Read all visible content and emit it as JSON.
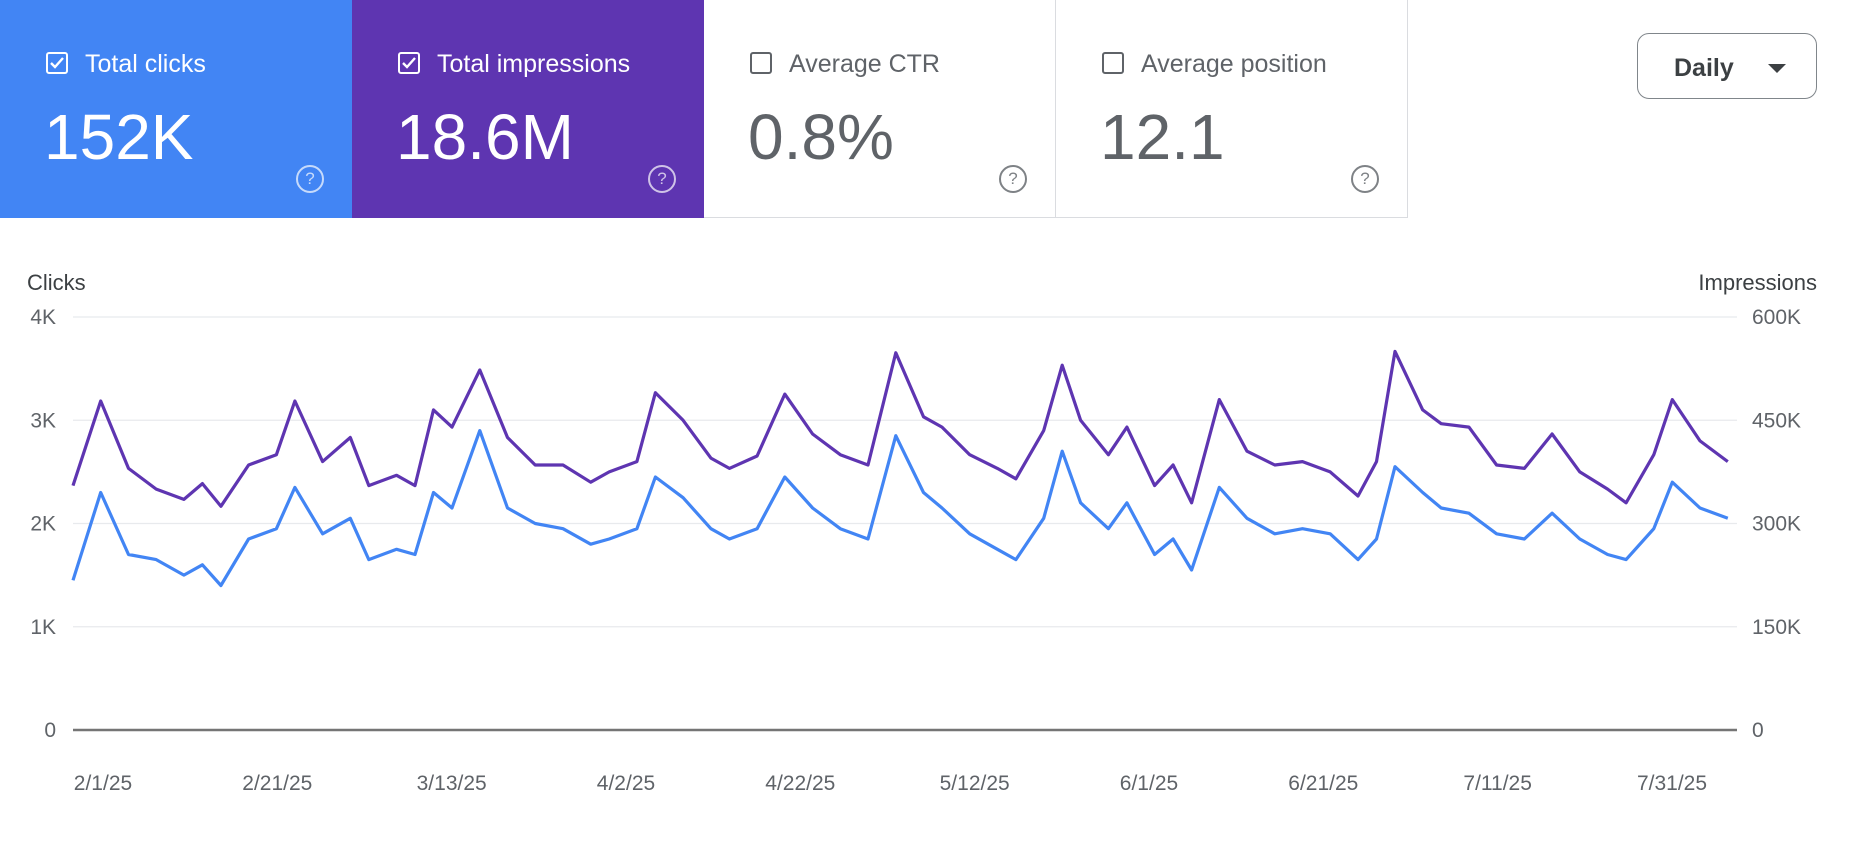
{
  "cards": [
    {
      "label": "Total clicks",
      "value": "152K",
      "checked": true
    },
    {
      "label": "Total impressions",
      "value": "18.6M",
      "checked": true
    },
    {
      "label": "Average CTR",
      "value": "0.8%",
      "checked": false
    },
    {
      "label": "Average position",
      "value": "12.1",
      "checked": false
    }
  ],
  "help_glyph": "?",
  "granularity": {
    "label": "Daily"
  },
  "colors": {
    "clicks": "#4285f4",
    "impressions": "#5e35b1",
    "grid": "#e8eaed",
    "baseline": "#757575"
  },
  "chart_data": {
    "type": "line",
    "x_tick_labels": [
      "2/1/25",
      "2/21/25",
      "3/13/25",
      "4/2/25",
      "4/22/25",
      "5/12/25",
      "6/1/25",
      "6/21/25",
      "7/11/25",
      "7/31/25"
    ],
    "xlim": [
      "2025-02-01",
      "2025-07-31"
    ],
    "y_left": {
      "label": "Clicks",
      "ticks": [
        "0",
        "1K",
        "2K",
        "3K",
        "4K"
      ],
      "ylim": [
        0,
        4000
      ]
    },
    "y_right": {
      "label": "Impressions",
      "ticks": [
        "0",
        "150K",
        "300K",
        "450K",
        "600K"
      ],
      "ylim": [
        0,
        600000
      ]
    },
    "grid": true,
    "series": [
      {
        "name": "Impressions",
        "axis": "right",
        "points": [
          [
            "2025-02-01",
            355000
          ],
          [
            "2025-02-04",
            478000
          ],
          [
            "2025-02-07",
            380000
          ],
          [
            "2025-02-10",
            350000
          ],
          [
            "2025-02-13",
            335000
          ],
          [
            "2025-02-15",
            358000
          ],
          [
            "2025-02-17",
            325000
          ],
          [
            "2025-02-20",
            385000
          ],
          [
            "2025-02-23",
            400000
          ],
          [
            "2025-02-25",
            478000
          ],
          [
            "2025-02-28",
            390000
          ],
          [
            "2025-03-03",
            425000
          ],
          [
            "2025-03-05",
            355000
          ],
          [
            "2025-03-08",
            370000
          ],
          [
            "2025-03-10",
            355000
          ],
          [
            "2025-03-12",
            465000
          ],
          [
            "2025-03-14",
            440000
          ],
          [
            "2025-03-17",
            523000
          ],
          [
            "2025-03-20",
            425000
          ],
          [
            "2025-03-23",
            385000
          ],
          [
            "2025-03-26",
            385000
          ],
          [
            "2025-03-29",
            360000
          ],
          [
            "2025-03-31",
            375000
          ],
          [
            "2025-04-03",
            390000
          ],
          [
            "2025-04-05",
            490000
          ],
          [
            "2025-04-08",
            450000
          ],
          [
            "2025-04-11",
            395000
          ],
          [
            "2025-04-13",
            380000
          ],
          [
            "2025-04-16",
            398000
          ],
          [
            "2025-04-19",
            488000
          ],
          [
            "2025-04-22",
            430000
          ],
          [
            "2025-04-25",
            400000
          ],
          [
            "2025-04-28",
            385000
          ],
          [
            "2025-05-01",
            548000
          ],
          [
            "2025-05-04",
            455000
          ],
          [
            "2025-05-06",
            440000
          ],
          [
            "2025-05-09",
            400000
          ],
          [
            "2025-05-12",
            380000
          ],
          [
            "2025-05-14",
            365000
          ],
          [
            "2025-05-17",
            435000
          ],
          [
            "2025-05-19",
            530000
          ],
          [
            "2025-05-21",
            450000
          ],
          [
            "2025-05-24",
            400000
          ],
          [
            "2025-05-26",
            440000
          ],
          [
            "2025-05-29",
            355000
          ],
          [
            "2025-05-31",
            385000
          ],
          [
            "2025-06-02",
            330000
          ],
          [
            "2025-06-05",
            480000
          ],
          [
            "2025-06-08",
            405000
          ],
          [
            "2025-06-11",
            385000
          ],
          [
            "2025-06-14",
            390000
          ],
          [
            "2025-06-17",
            375000
          ],
          [
            "2025-06-20",
            340000
          ],
          [
            "2025-06-22",
            390000
          ],
          [
            "2025-06-24",
            550000
          ],
          [
            "2025-06-27",
            465000
          ],
          [
            "2025-06-29",
            445000
          ],
          [
            "2025-07-02",
            440000
          ],
          [
            "2025-07-05",
            385000
          ],
          [
            "2025-07-08",
            380000
          ],
          [
            "2025-07-11",
            430000
          ],
          [
            "2025-07-14",
            375000
          ],
          [
            "2025-07-17",
            350000
          ],
          [
            "2025-07-19",
            330000
          ],
          [
            "2025-07-22",
            400000
          ],
          [
            "2025-07-24",
            480000
          ],
          [
            "2025-07-27",
            420000
          ],
          [
            "2025-07-30",
            390000
          ]
        ]
      },
      {
        "name": "Clicks",
        "axis": "left",
        "points": [
          [
            "2025-02-01",
            1450
          ],
          [
            "2025-02-04",
            2300
          ],
          [
            "2025-02-07",
            1700
          ],
          [
            "2025-02-10",
            1650
          ],
          [
            "2025-02-13",
            1500
          ],
          [
            "2025-02-15",
            1600
          ],
          [
            "2025-02-17",
            1400
          ],
          [
            "2025-02-20",
            1850
          ],
          [
            "2025-02-23",
            1950
          ],
          [
            "2025-02-25",
            2350
          ],
          [
            "2025-02-28",
            1900
          ],
          [
            "2025-03-03",
            2050
          ],
          [
            "2025-03-05",
            1650
          ],
          [
            "2025-03-08",
            1750
          ],
          [
            "2025-03-10",
            1700
          ],
          [
            "2025-03-12",
            2300
          ],
          [
            "2025-03-14",
            2150
          ],
          [
            "2025-03-17",
            2900
          ],
          [
            "2025-03-20",
            2150
          ],
          [
            "2025-03-23",
            2000
          ],
          [
            "2025-03-26",
            1950
          ],
          [
            "2025-03-29",
            1800
          ],
          [
            "2025-03-31",
            1850
          ],
          [
            "2025-04-03",
            1950
          ],
          [
            "2025-04-05",
            2450
          ],
          [
            "2025-04-08",
            2250
          ],
          [
            "2025-04-11",
            1950
          ],
          [
            "2025-04-13",
            1850
          ],
          [
            "2025-04-16",
            1950
          ],
          [
            "2025-04-19",
            2450
          ],
          [
            "2025-04-22",
            2150
          ],
          [
            "2025-04-25",
            1950
          ],
          [
            "2025-04-28",
            1850
          ],
          [
            "2025-05-01",
            2850
          ],
          [
            "2025-05-04",
            2300
          ],
          [
            "2025-05-06",
            2150
          ],
          [
            "2025-05-09",
            1900
          ],
          [
            "2025-05-12",
            1750
          ],
          [
            "2025-05-14",
            1650
          ],
          [
            "2025-05-17",
            2050
          ],
          [
            "2025-05-19",
            2700
          ],
          [
            "2025-05-21",
            2200
          ],
          [
            "2025-05-24",
            1950
          ],
          [
            "2025-05-26",
            2200
          ],
          [
            "2025-05-29",
            1700
          ],
          [
            "2025-05-31",
            1850
          ],
          [
            "2025-06-02",
            1550
          ],
          [
            "2025-06-05",
            2350
          ],
          [
            "2025-06-08",
            2050
          ],
          [
            "2025-06-11",
            1900
          ],
          [
            "2025-06-14",
            1950
          ],
          [
            "2025-06-17",
            1900
          ],
          [
            "2025-06-20",
            1650
          ],
          [
            "2025-06-22",
            1850
          ],
          [
            "2025-06-24",
            2550
          ],
          [
            "2025-06-27",
            2300
          ],
          [
            "2025-06-29",
            2150
          ],
          [
            "2025-07-02",
            2100
          ],
          [
            "2025-07-05",
            1900
          ],
          [
            "2025-07-08",
            1850
          ],
          [
            "2025-07-11",
            2100
          ],
          [
            "2025-07-14",
            1850
          ],
          [
            "2025-07-17",
            1700
          ],
          [
            "2025-07-19",
            1650
          ],
          [
            "2025-07-22",
            1950
          ],
          [
            "2025-07-24",
            2400
          ],
          [
            "2025-07-27",
            2150
          ],
          [
            "2025-07-30",
            2050
          ]
        ]
      }
    ]
  }
}
